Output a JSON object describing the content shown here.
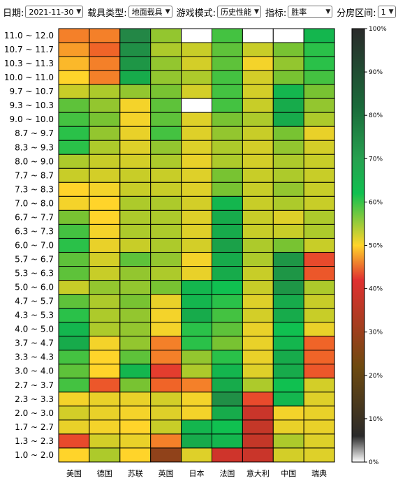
{
  "toolbar": {
    "date_label": "日期:",
    "date_value": "2021-11-30",
    "vehicle_label": "载具类型:",
    "vehicle_value": "地面载具",
    "mode_label": "游戏模式:",
    "mode_value": "历史性能",
    "metric_label": "指标:",
    "metric_value": "胜率",
    "range_label": "分房区间:",
    "range_value": "1"
  },
  "chart_data": {
    "type": "heatmap",
    "title": "",
    "xlabel": "",
    "ylabel": "",
    "x_categories": [
      "美国",
      "德国",
      "苏联",
      "英国",
      "日本",
      "法国",
      "意大利",
      "中国",
      "瑞典"
    ],
    "y_categories": [
      "11.0 ~ 12.0",
      "10.7 ~ 11.7",
      "10.3 ~ 11.3",
      "10.0 ~ 11.0",
      "9.7 ~ 10.7",
      "9.3 ~ 10.3",
      "9.0 ~ 10.0",
      "8.7 ~ 9.7",
      "8.3 ~ 9.3",
      "8.0 ~ 9.0",
      "7.7 ~ 8.7",
      "7.3 ~ 8.3",
      "7.0 ~ 8.0",
      "6.7 ~ 7.7",
      "6.3 ~ 7.3",
      "6.0 ~ 7.0",
      "5.7 ~ 6.7",
      "5.3 ~ 6.3",
      "5.0 ~ 6.0",
      "4.7 ~ 5.7",
      "4.3 ~ 5.3",
      "4.0 ~ 5.0",
      "3.7 ~ 4.7",
      "3.3 ~ 4.3",
      "3.0 ~ 4.0",
      "2.7 ~ 3.7",
      "2.3 ~ 3.3",
      "2.0 ~ 3.0",
      "1.7 ~ 2.7",
      "1.3 ~ 2.3",
      "1.0 ~ 2.0"
    ],
    "colorbar": {
      "min": 0,
      "max": 100,
      "unit": "%",
      "tick_labels": [
        "0%",
        "10%",
        "20%",
        "30%",
        "40%",
        "50%",
        "60%",
        "70%",
        "80%",
        "90%",
        "100%"
      ]
    },
    "values": [
      [
        47,
        47,
        68,
        57,
        null,
        60,
        null,
        null,
        63
      ],
      [
        48,
        46,
        67,
        56,
        55,
        59,
        55,
        58,
        61
      ],
      [
        49,
        47,
        66,
        57,
        54,
        59,
        51,
        57,
        61
      ],
      [
        50,
        47,
        64,
        57,
        56,
        60,
        54,
        58,
        60
      ],
      [
        55,
        56,
        57,
        58,
        54,
        60,
        54,
        63,
        58
      ],
      [
        59,
        57,
        51,
        59,
        null,
        60,
        55,
        64,
        57
      ],
      [
        60,
        58,
        51,
        59,
        53,
        58,
        56,
        64,
        56
      ],
      [
        61,
        57,
        52,
        60,
        53,
        57,
        55,
        58,
        52
      ],
      [
        61,
        56,
        53,
        57,
        53,
        56,
        54,
        57,
        54
      ],
      [
        56,
        55,
        54,
        56,
        52,
        56,
        54,
        56,
        55
      ],
      [
        55,
        54,
        55,
        55,
        53,
        58,
        55,
        56,
        55
      ],
      [
        50,
        51,
        55,
        55,
        53,
        58,
        55,
        57,
        55
      ],
      [
        51,
        50,
        56,
        56,
        54,
        63,
        55,
        56,
        55
      ],
      [
        58,
        50,
        56,
        56,
        53,
        64,
        55,
        53,
        56
      ],
      [
        60,
        51,
        56,
        56,
        53,
        64,
        55,
        55,
        56
      ],
      [
        61,
        52,
        55,
        56,
        54,
        65,
        56,
        58,
        55
      ],
      [
        59,
        54,
        59,
        57,
        51,
        64,
        56,
        66,
        44
      ],
      [
        59,
        55,
        57,
        56,
        52,
        64,
        55,
        66,
        45
      ],
      [
        55,
        57,
        57,
        58,
        63,
        62,
        55,
        66,
        56
      ],
      [
        59,
        56,
        58,
        52,
        63,
        61,
        53,
        64,
        55
      ],
      [
        61,
        56,
        57,
        51,
        64,
        60,
        54,
        64,
        55
      ],
      [
        63,
        56,
        57,
        51,
        61,
        59,
        52,
        62,
        52
      ],
      [
        64,
        51,
        57,
        47,
        61,
        58,
        52,
        63,
        46
      ],
      [
        60,
        50,
        59,
        47,
        57,
        61,
        52,
        64,
        46
      ],
      [
        59,
        50,
        63,
        43,
        56,
        63,
        53,
        64,
        45
      ],
      [
        60,
        45,
        58,
        46,
        47,
        64,
        56,
        62,
        54
      ],
      [
        51,
        52,
        52,
        54,
        51,
        67,
        44,
        63,
        53
      ],
      [
        54,
        52,
        51,
        53,
        51,
        64,
        38,
        51,
        52
      ],
      [
        52,
        51,
        50,
        55,
        63,
        62,
        37,
        52,
        52
      ],
      [
        44,
        54,
        52,
        47,
        64,
        63,
        37,
        56,
        53
      ],
      [
        50,
        56,
        50,
        28,
        53,
        39,
        38,
        54,
        53
      ]
    ]
  }
}
